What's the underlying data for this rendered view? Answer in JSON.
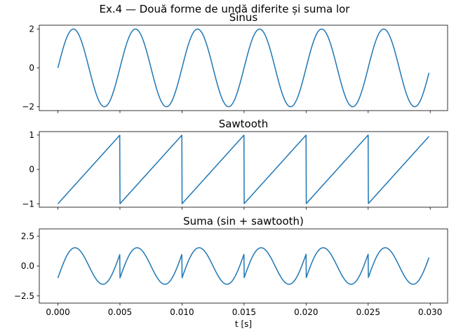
{
  "figure": {
    "title": "Ex.4 — Două forme de undă diferite și suma lor"
  },
  "chart_data": [
    {
      "type": "line",
      "title": "Sinus",
      "xlabel": "",
      "ylabel": "",
      "xlim": [
        -0.0015,
        0.0314
      ],
      "ylim": [
        -2.2,
        2.2
      ],
      "x_ticks": [
        0.0,
        0.005,
        0.01,
        0.015,
        0.02,
        0.025,
        0.03
      ],
      "x_tick_labels": [
        "",
        "",
        "",
        "",
        "",
        "",
        ""
      ],
      "y_ticks": [
        2,
        0,
        -2
      ],
      "y_tick_labels": [
        "2",
        "0",
        "−2"
      ],
      "grid": false,
      "series": [
        {
          "color": "#1f77b4",
          "function": "2*sin(2*pi*f*t)",
          "frequency_hz": 200,
          "amplitude": 2,
          "t_start": 0.0,
          "t_end": 0.0299
        }
      ]
    },
    {
      "type": "line",
      "title": "Sawtooth",
      "xlabel": "",
      "ylabel": "",
      "xlim": [
        -0.0015,
        0.0314
      ],
      "ylim": [
        -1.1,
        1.1
      ],
      "x_ticks": [
        0.0,
        0.005,
        0.01,
        0.015,
        0.02,
        0.025,
        0.03
      ],
      "x_tick_labels": [
        "",
        "",
        "",
        "",
        "",
        "",
        ""
      ],
      "y_ticks": [
        1,
        0,
        -1
      ],
      "y_tick_labels": [
        "1",
        "0",
        "−1"
      ],
      "grid": false,
      "series": [
        {
          "color": "#1f77b4",
          "function": "sawtooth(2*pi*f*t)",
          "frequency_hz": 200,
          "amplitude": 1,
          "t_start": 0.0,
          "t_end": 0.0299
        }
      ]
    },
    {
      "type": "line",
      "title": "Suma (sin + sawtooth)",
      "xlabel": "t [s]",
      "ylabel": "",
      "xlim": [
        -0.0015,
        0.0314
      ],
      "ylim": [
        -3.1,
        3.1
      ],
      "x_ticks": [
        0.0,
        0.005,
        0.01,
        0.015,
        0.02,
        0.025,
        0.03
      ],
      "x_tick_labels": [
        "0.000",
        "0.005",
        "0.010",
        "0.015",
        "0.020",
        "0.025",
        "0.030"
      ],
      "y_ticks": [
        2.5,
        0.0,
        -2.5
      ],
      "y_tick_labels": [
        "2.5",
        "0.0",
        "−2.5"
      ],
      "grid": false,
      "series": [
        {
          "color": "#1f77b4",
          "function": "2*sin(2*pi*f*t) + sawtooth(2*pi*f*t)",
          "frequency_hz": 200,
          "t_start": 0.0,
          "t_end": 0.0299
        }
      ]
    }
  ]
}
